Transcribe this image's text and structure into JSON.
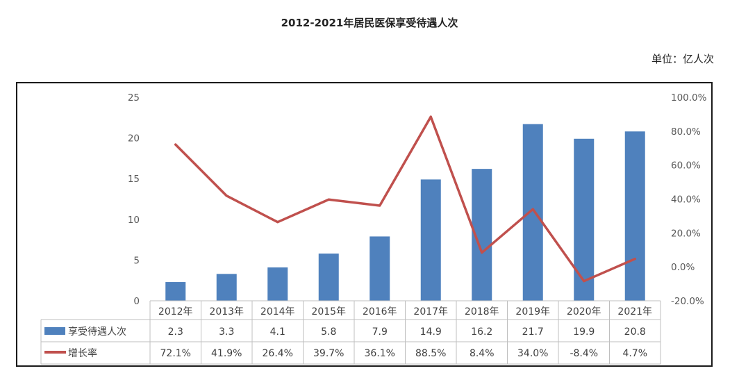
{
  "title": "2012-2021年居民医保享受待遇人次",
  "unit_label": "单位：亿人次",
  "chart_data": {
    "type": "bar",
    "title": "2012-2021年居民医保享受待遇人次",
    "categories": [
      "2012年",
      "2013年",
      "2014年",
      "2015年",
      "2016年",
      "2017年",
      "2018年",
      "2019年",
      "2020年",
      "2021年"
    ],
    "series": [
      {
        "name": "享受待遇人次",
        "type": "bar",
        "axis": "left",
        "color": "#4F81BD",
        "values": [
          2.3,
          3.3,
          4.1,
          5.8,
          7.9,
          14.9,
          16.2,
          21.7,
          19.9,
          20.8
        ],
        "labels": [
          "2.3",
          "3.3",
          "4.1",
          "5.8",
          "7.9",
          "14.9",
          "16.2",
          "21.7",
          "19.9",
          "20.8"
        ]
      },
      {
        "name": "增长率",
        "type": "line",
        "axis": "right",
        "color": "#C0504D",
        "values": [
          72.1,
          41.9,
          26.4,
          39.7,
          36.1,
          88.5,
          8.4,
          34.0,
          -8.4,
          4.7
        ],
        "labels": [
          "72.1%",
          "41.9%",
          "26.4%",
          "39.7%",
          "36.1%",
          "88.5%",
          "8.4%",
          "34.0%",
          "-8.4%",
          "4.7%"
        ]
      }
    ],
    "y_left": {
      "ylim": [
        0,
        25
      ],
      "ticks": [
        "0",
        "5",
        "10",
        "15",
        "20",
        "25"
      ]
    },
    "y_right": {
      "ylim": [
        -20,
        100
      ],
      "ticks": [
        "-20.0%",
        "0.0%",
        "20.0%",
        "40.0%",
        "60.0%",
        "80.0%",
        "100.0%"
      ]
    },
    "grid": false,
    "legend": "data-table"
  }
}
